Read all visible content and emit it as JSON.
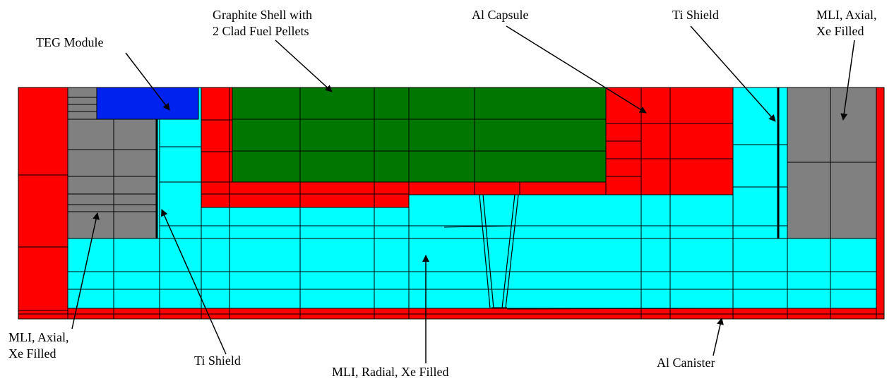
{
  "labels": {
    "graphite_shell_1": "Graphite Shell with",
    "graphite_shell_2": "2 Clad Fuel Pellets",
    "teg_module": "TEG Module",
    "al_capsule": "Al Capsule",
    "ti_shield_top": "Ti Shield",
    "mli_axial_top_1": "MLI, Axial,",
    "mli_axial_top_2": "Xe Filled",
    "mli_axial_left_1": "MLI, Axial,",
    "mli_axial_left_2": "Xe Filled",
    "ti_shield_bottom": "Ti Shield",
    "mli_radial": "MLI, Radial, Xe Filled",
    "al_canister": "Al Canister"
  },
  "colors": {
    "red": "#ff0000",
    "cyan": "#00ffff",
    "green": "#007700",
    "gray": "#808080",
    "blue": "#0022ee",
    "line": "#000000"
  }
}
